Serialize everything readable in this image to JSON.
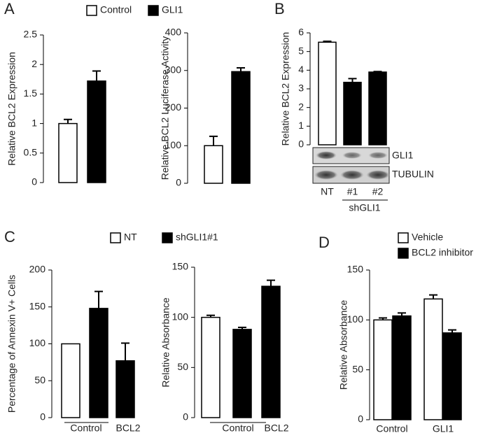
{
  "chart_data": [
    {
      "type": "bar",
      "panel": "A",
      "ylabel": "Relative BCL2 Expression",
      "ylim": [
        0,
        2.5
      ],
      "yticks": [
        0,
        0.5,
        1,
        1.5,
        2,
        2.5
      ],
      "series": [
        {
          "name": "Control",
          "color": "#ffffff",
          "values": [
            1.0
          ],
          "errors": [
            0.07
          ]
        },
        {
          "name": "GLI1",
          "color": "#000000",
          "values": [
            1.72
          ],
          "errors": [
            0.17
          ]
        }
      ]
    },
    {
      "type": "bar",
      "ylabel": "Relative BCL2 Luciferase Activity",
      "ylim": [
        0,
        400
      ],
      "yticks": [
        0,
        100,
        200,
        300,
        400
      ],
      "series": [
        {
          "color": "#ffffff",
          "values": [
            100
          ],
          "errors": [
            25
          ]
        },
        {
          "color": "#000000",
          "values": [
            297
          ],
          "errors": [
            10
          ]
        }
      ]
    },
    {
      "type": "bar",
      "panel": "B",
      "ylabel": "Relative BCL2 Expression",
      "ylim": [
        0,
        6
      ],
      "yticks": [
        0,
        1,
        2,
        3,
        4,
        5,
        6
      ],
      "categories": [
        "NT",
        "#1",
        "#2"
      ],
      "colors": [
        "#ffffff",
        "#000000",
        "#000000"
      ],
      "values": [
        5.5,
        3.35,
        3.9
      ],
      "errors": [
        0.05,
        0.2,
        0.03
      ],
      "blot_rows": [
        "GLI1",
        "TUBULIN"
      ],
      "lane_group": "shGLI1"
    },
    {
      "type": "bar",
      "panel": "C",
      "ylabel": "Percentage of Annexin V+ Cells",
      "ylim": [
        0,
        200
      ],
      "yticks": [
        0,
        50,
        100,
        150,
        200
      ],
      "categories": [
        "Control",
        "BCL2"
      ],
      "series": [
        {
          "name": "NT",
          "color": "#ffffff",
          "values": [
            100,
            null
          ],
          "errors": [
            0,
            null
          ]
        },
        {
          "name": "shGLI1#1",
          "color": "#000000",
          "values": [
            148,
            77
          ],
          "errors": [
            23,
            24
          ]
        }
      ]
    },
    {
      "type": "bar",
      "ylabel": "Relative Absorbance",
      "ylim": [
        0,
        150
      ],
      "yticks": [
        0,
        50,
        100,
        150
      ],
      "categories": [
        "Control",
        "BCL2"
      ],
      "series": [
        {
          "color": "#ffffff",
          "values": [
            100,
            null
          ],
          "errors": [
            2,
            null
          ]
        },
        {
          "color": "#000000",
          "values": [
            88,
            131
          ],
          "errors": [
            2,
            6
          ]
        }
      ]
    },
    {
      "type": "bar",
      "panel": "D",
      "ylabel": "Relative Absorbance",
      "ylim": [
        0,
        150
      ],
      "yticks": [
        0,
        50,
        100,
        150
      ],
      "categories": [
        "Control",
        "GLI1"
      ],
      "series": [
        {
          "name": "Vehicle",
          "color": "#ffffff",
          "values": [
            100,
            121
          ],
          "errors": [
            2,
            4
          ]
        },
        {
          "name": "BCL2 inhibitor",
          "color": "#000000",
          "values": [
            104,
            87
          ],
          "errors": [
            3,
            3
          ]
        }
      ]
    }
  ]
}
